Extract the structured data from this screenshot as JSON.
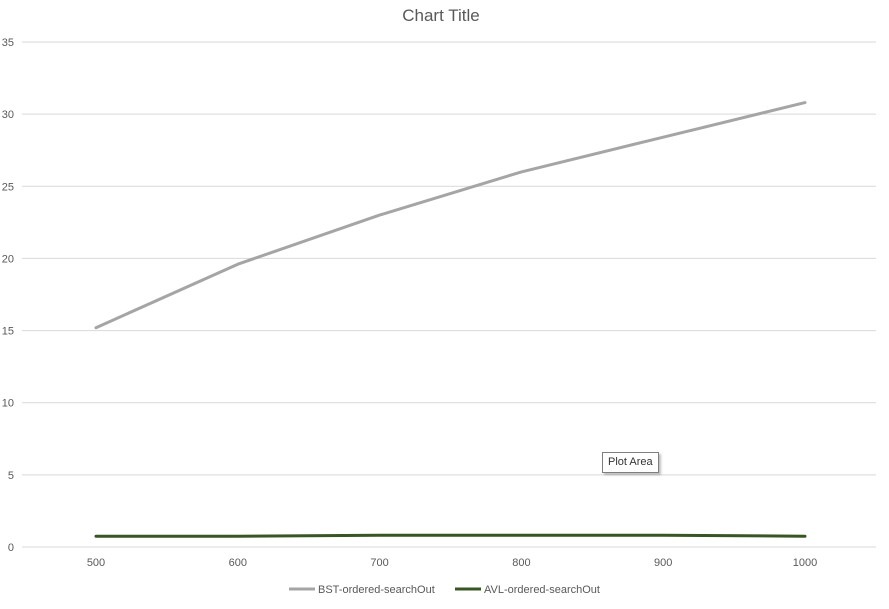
{
  "chart_data": {
    "type": "line",
    "title": "Chart Title",
    "xlabel": "",
    "ylabel": "",
    "x": [
      500,
      600,
      700,
      800,
      900,
      1000
    ],
    "ylim": [
      0,
      35
    ],
    "yticks": [
      0,
      5,
      10,
      15,
      20,
      25,
      30,
      35
    ],
    "grid": true,
    "legend_position": "bottom",
    "series": [
      {
        "name": "BST-ordered-searchOut",
        "values": [
          15.2,
          19.6,
          23.0,
          26.0,
          28.4,
          30.8
        ],
        "color": "#a5a5a5"
      },
      {
        "name": "AVL-ordered-searchOut",
        "values": [
          0.75,
          0.75,
          0.82,
          0.82,
          0.82,
          0.75
        ],
        "color": "#375623"
      }
    ]
  },
  "tooltip": {
    "label": "Plot Area"
  }
}
